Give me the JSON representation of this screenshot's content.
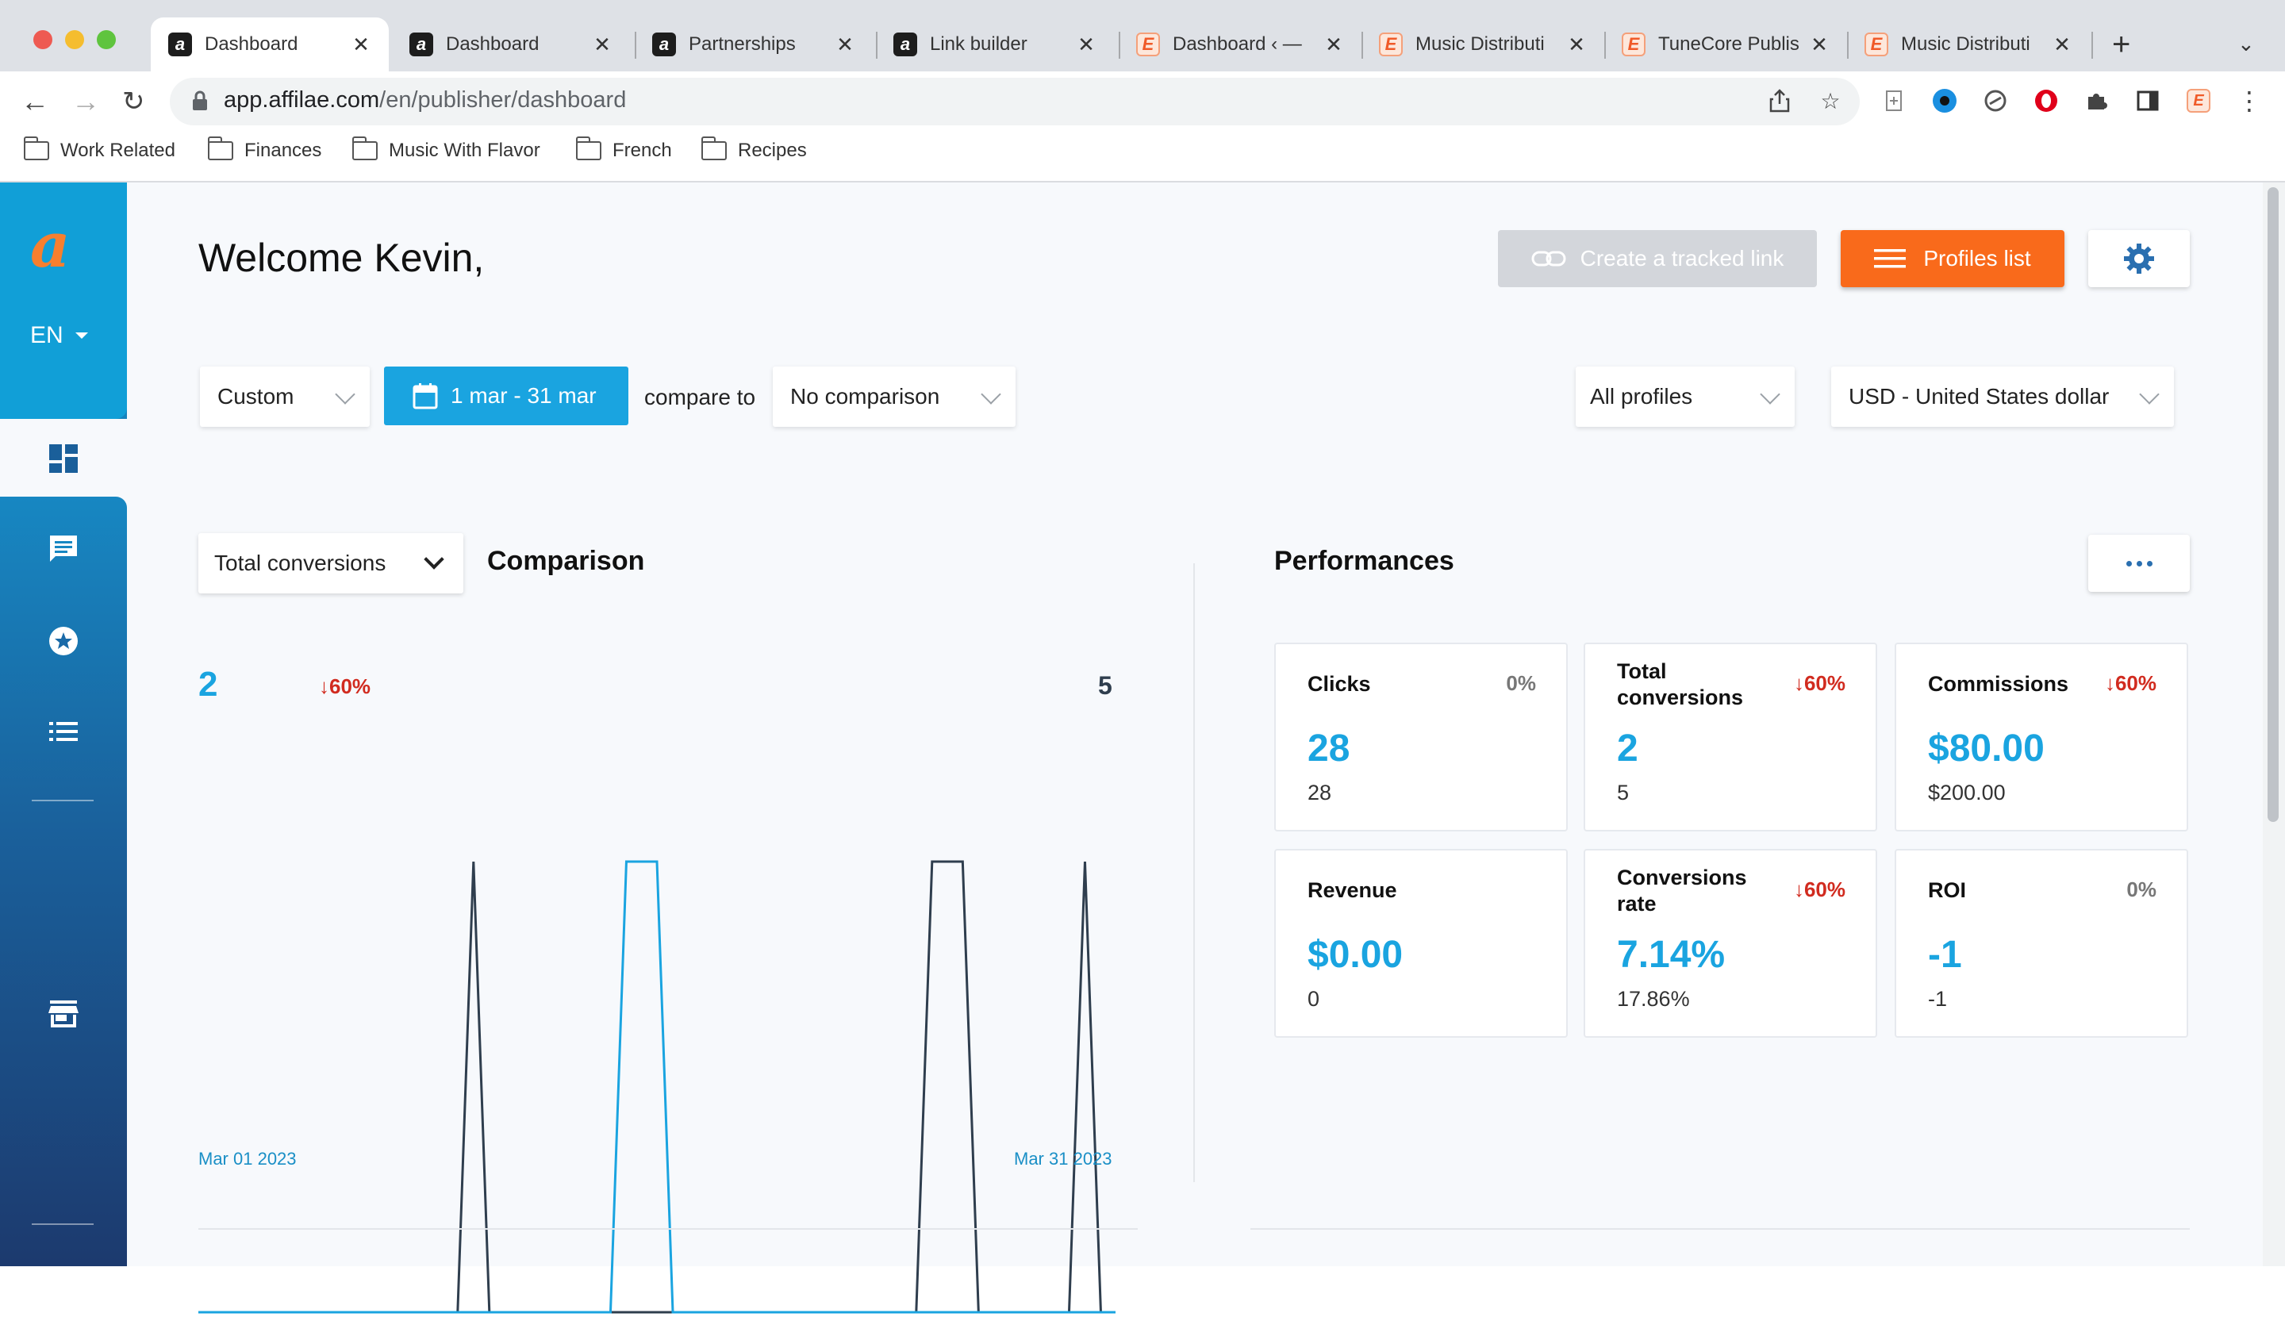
{
  "browser": {
    "tabs": [
      {
        "label": "Dashboard",
        "favicon": "affilae-icon",
        "active": true
      },
      {
        "label": "Dashboard",
        "favicon": "affilae-icon",
        "active": false
      },
      {
        "label": "Partnerships",
        "favicon": "affilae-icon",
        "active": false
      },
      {
        "label": "Link builder",
        "favicon": "affilae-icon",
        "active": false
      },
      {
        "label": "Dashboard ‹ —",
        "favicon": "tunecore-icon",
        "active": false
      },
      {
        "label": "Music Distributi",
        "favicon": "tunecore-icon",
        "active": false
      },
      {
        "label": "TuneCore Publis",
        "favicon": "tunecore-icon",
        "active": false
      },
      {
        "label": "Music Distributi",
        "favicon": "tunecore-icon",
        "active": false
      }
    ],
    "url_host": "app.affilae.com",
    "url_path": "/en/publisher/dashboard",
    "bookmarks": [
      "Work Related",
      "Finances",
      "Music With Flavor",
      "French",
      "Recipes"
    ]
  },
  "sidebar": {
    "logo": "a",
    "language": "EN"
  },
  "header": {
    "welcome": "Welcome Kevin,",
    "create_link_label": "Create a tracked link",
    "profiles_label": "Profiles list"
  },
  "filters": {
    "period": "Custom",
    "date_range": "1 mar - 31 mar",
    "compare_label": "compare to",
    "comparison": "No comparison",
    "profiles": "All profiles",
    "currency": "USD - United States dollar"
  },
  "comparison": {
    "metric": "Total conversions",
    "title": "Comparison",
    "current_value": "2",
    "change": "↓60%",
    "previous_value": "5",
    "start_label": "Mar 01 2023",
    "end_label": "Mar 31 2023"
  },
  "chart_data": {
    "type": "line",
    "x_range": [
      "Mar 01 2023",
      "Mar 31 2023"
    ],
    "series": [
      {
        "color": "#1aa4e0",
        "peaks": [
          [
            15,
            16
          ]
        ]
      },
      {
        "color": "#2f3e4e",
        "peaks": [
          [
            10,
            10
          ],
          [
            25,
            26
          ],
          [
            30,
            30
          ]
        ]
      }
    ]
  },
  "performances": {
    "title": "Performances",
    "cards": [
      {
        "label": "Clicks",
        "change": "0%",
        "trend": "flat",
        "value": "28",
        "previous": "28"
      },
      {
        "label": "Total conversions",
        "change": "↓60%",
        "trend": "down",
        "value": "2",
        "previous": "5"
      },
      {
        "label": "Commissions",
        "change": "↓60%",
        "trend": "down",
        "value": "$80.00",
        "previous": "$200.00"
      },
      {
        "label": "Revenue",
        "change": "",
        "trend": "flat",
        "value": "$0.00",
        "previous": "0"
      },
      {
        "label": "Conversions rate",
        "change": "↓60%",
        "trend": "down",
        "value": "7.14%",
        "previous": "17.86%"
      },
      {
        "label": "ROI",
        "change": "0%",
        "trend": "flat",
        "value": "-1",
        "previous": "-1"
      }
    ]
  },
  "colors": {
    "accent": "#1aa4e0",
    "brand_orange": "#f96a1b",
    "negative": "#d12b1f"
  }
}
